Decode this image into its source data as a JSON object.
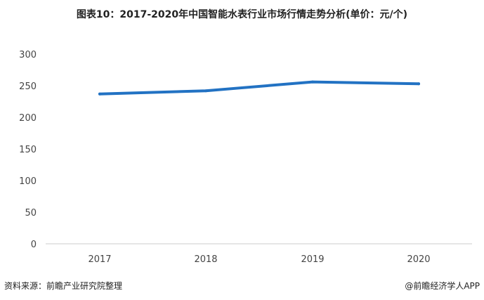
{
  "chart_data": {
    "type": "line",
    "title": "图表10：2017-2020年中国智能水表行业市场行情走势分析(单价：元/个)",
    "categories": [
      "2017",
      "2018",
      "2019",
      "2020"
    ],
    "series": [
      {
        "values": [
          237,
          242,
          256,
          253
        ],
        "color": "#2272c3"
      }
    ],
    "ylim": [
      0,
      300
    ],
    "yticks": [
      0,
      50,
      100,
      150,
      200,
      250,
      300
    ],
    "grid": false,
    "legend": "none"
  },
  "footer": {
    "source": "资料来源：前瞻产业研究院整理",
    "credit": "@前瞻经济学人APP"
  }
}
